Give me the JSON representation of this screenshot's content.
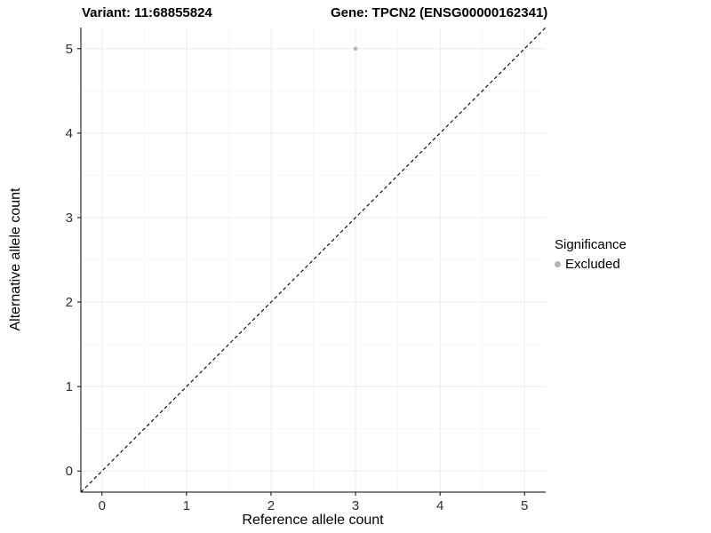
{
  "titles": {
    "variant": "Variant: 11:68855824",
    "gene": "Gene: TPCN2 (ENSG00000162341)"
  },
  "axes": {
    "x_label": "Reference allele count",
    "y_label": "Alternative allele count"
  },
  "legend": {
    "title": "Significance",
    "items": [
      {
        "label": "Excluded",
        "marker": "circle-icon",
        "color": "#b5b5b5"
      }
    ]
  },
  "colors": {
    "point": "#b5b5b5",
    "grid_major": "#ececec",
    "grid_minor": "#f6f6f6",
    "axis": "#000000",
    "tick_label": "#303030",
    "background": "#ffffff"
  },
  "chart_data": {
    "type": "scatter",
    "title": "Variant: 11:68855824   Gene: TPCN2 (ENSG00000162341)",
    "xlabel": "Reference allele count",
    "ylabel": "Alternative allele count",
    "xlim": [
      -0.25,
      5.25
    ],
    "ylim": [
      -0.25,
      5.25
    ],
    "x_ticks": [
      0,
      1,
      2,
      3,
      4,
      5
    ],
    "y_ticks": [
      0,
      1,
      2,
      3,
      4,
      5
    ],
    "x_minor": [
      0.5,
      1.5,
      2.5,
      3.5,
      4.5
    ],
    "y_minor": [
      0.5,
      1.5,
      2.5,
      3.5,
      4.5
    ],
    "grid": true,
    "legend_position": "right",
    "series": [
      {
        "name": "Excluded",
        "color": "#b5b5b5",
        "points": [
          {
            "x": 3,
            "y": 5
          }
        ]
      }
    ],
    "reference_line": {
      "type": "identity-diagonal",
      "from": [
        -0.25,
        -0.25
      ],
      "to": [
        5.25,
        5.25
      ],
      "style": "dashed",
      "color": "#000000"
    }
  }
}
